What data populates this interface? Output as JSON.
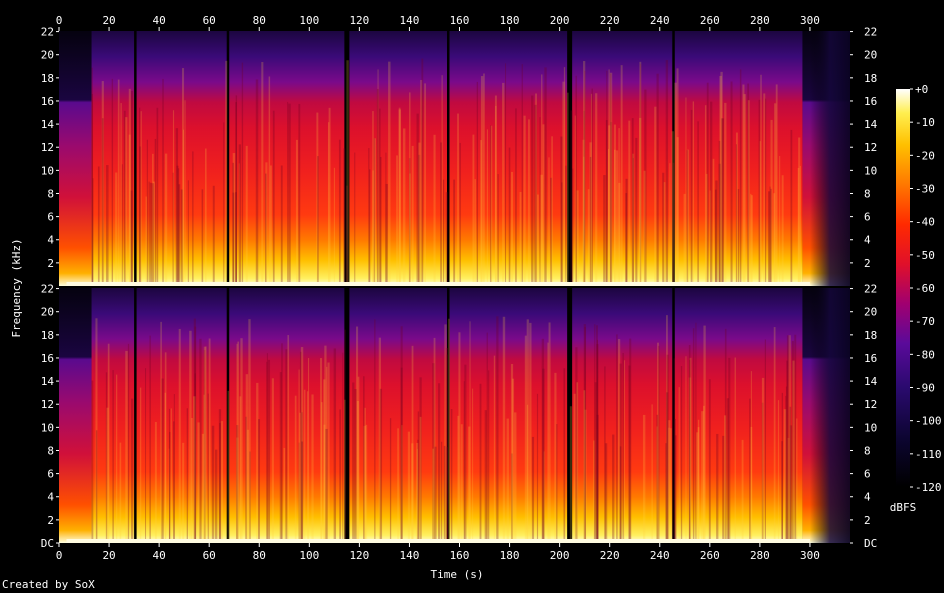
{
  "chart_data": {
    "type": "heatmap",
    "xlabel": "Time (s)",
    "ylabel": "Frequency (kHz)",
    "x_ticks": [
      "0",
      "20",
      "40",
      "60",
      "80",
      "100",
      "120",
      "140",
      "160",
      "180",
      "200",
      "220",
      "240",
      "260",
      "280",
      "300"
    ],
    "x_range": [
      0,
      316
    ],
    "channels": [
      {
        "y_ticks": [
          "2",
          "4",
          "6",
          "8",
          "10",
          "12",
          "14",
          "16",
          "18",
          "20",
          "22"
        ],
        "y_range": [
          0,
          22.05
        ]
      },
      {
        "y_ticks": [
          "DC",
          "2",
          "4",
          "6",
          "8",
          "10",
          "12",
          "14",
          "16",
          "18",
          "20",
          "22"
        ],
        "y_range": [
          0,
          22.05
        ]
      }
    ],
    "colorbar": {
      "label": "dBFS",
      "ticks": [
        "+0",
        "-10",
        "-20",
        "-30",
        "-40",
        "-50",
        "-60",
        "-70",
        "-80",
        "-90",
        "-100",
        "-110",
        "-120"
      ],
      "range": [
        -120,
        0
      ]
    },
    "loud_segments_s": [
      [
        13,
        30
      ],
      [
        31,
        67
      ],
      [
        68,
        114
      ],
      [
        116,
        155
      ],
      [
        156,
        203
      ],
      [
        205,
        245
      ],
      [
        246,
        297
      ]
    ],
    "lowpass_16khz_segments_s": [
      [
        0,
        13
      ],
      [
        297,
        316
      ]
    ],
    "fade_out_start_s": 300
  },
  "footer": {
    "credit": "Created by SoX"
  }
}
